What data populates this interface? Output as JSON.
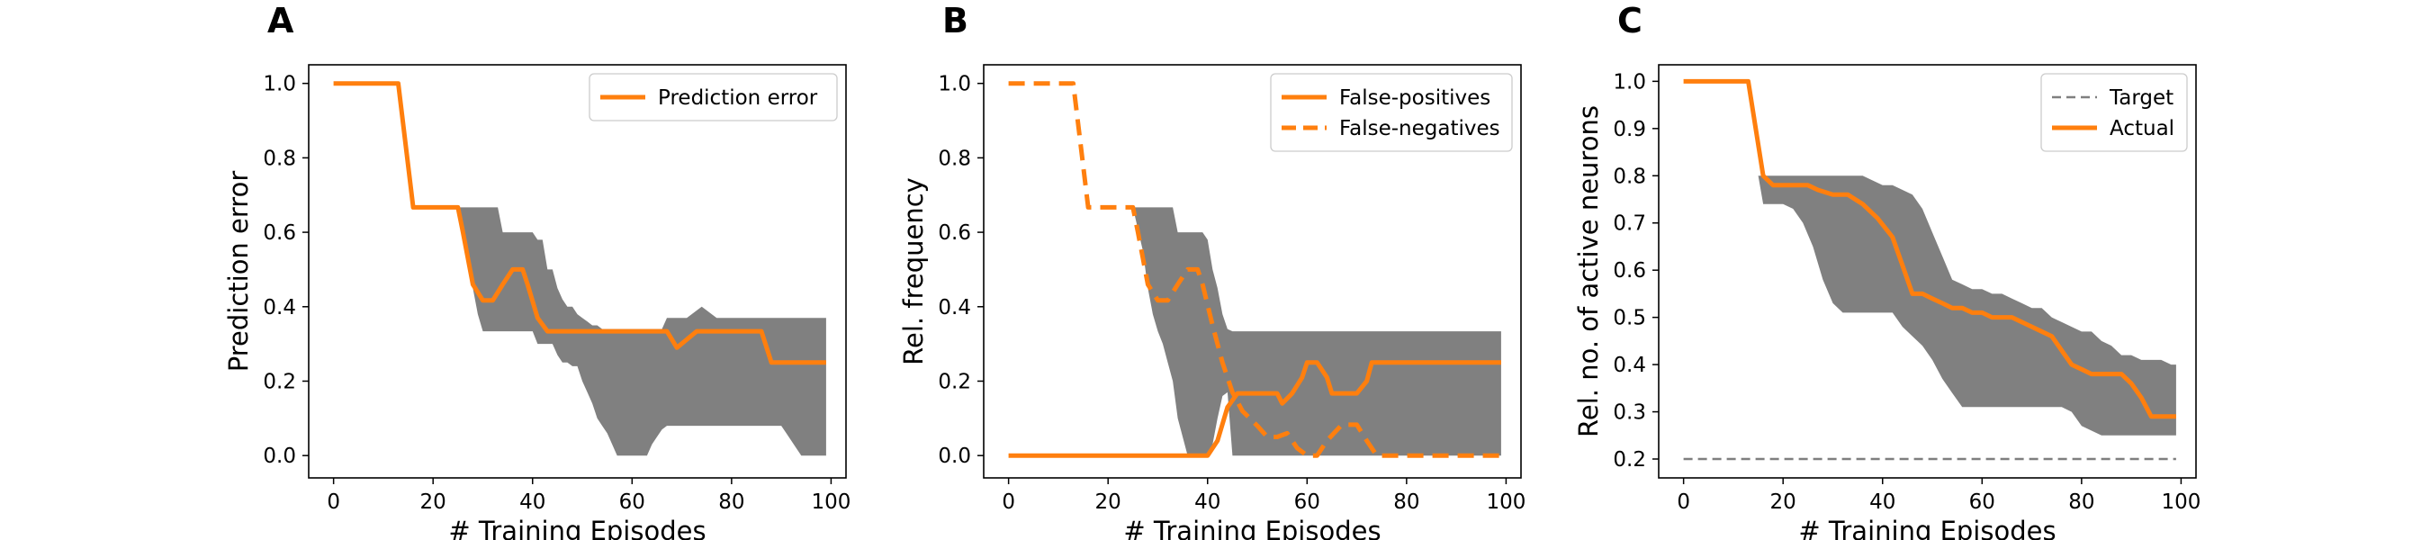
{
  "colors": {
    "accent": "#ff7f0e",
    "band": "#808080",
    "target": "#7f7f7f",
    "axis": "#000000"
  },
  "chart_data": [
    {
      "panel": "A",
      "type": "line",
      "xlabel": "# Training Episodes",
      "ylabel": "Prediction error",
      "xlim": [
        -5,
        103
      ],
      "ylim": [
        -0.06,
        1.05
      ],
      "xticks": [
        0,
        20,
        40,
        60,
        80,
        100
      ],
      "yticks": [
        0.0,
        0.2,
        0.4,
        0.6,
        0.8,
        1.0
      ],
      "ytick_labels": [
        "0.0",
        "0.2",
        "0.4",
        "0.6",
        "0.8",
        "1.0"
      ],
      "legend": {
        "position": "top-right"
      },
      "band": {
        "x": [
          25,
          27,
          28,
          29,
          30,
          31,
          32,
          33,
          34,
          35,
          36,
          37,
          38,
          39,
          40,
          41,
          42,
          43,
          44,
          45,
          46,
          47,
          48,
          49,
          50,
          51,
          52,
          53,
          54,
          55,
          56,
          57,
          58,
          59,
          60,
          61,
          62,
          63,
          64,
          65,
          66,
          67,
          68,
          69,
          70,
          71,
          72,
          73,
          74,
          75,
          76,
          77,
          78,
          79,
          80,
          81,
          82,
          83,
          84,
          85,
          86,
          87,
          88,
          89,
          90,
          91,
          92,
          93,
          94,
          95,
          96,
          97,
          98,
          99
        ],
        "upper": [
          0.667,
          0.667,
          0.667,
          0.667,
          0.667,
          0.667,
          0.667,
          0.667,
          0.6,
          0.6,
          0.6,
          0.6,
          0.6,
          0.6,
          0.6,
          0.58,
          0.58,
          0.5,
          0.5,
          0.45,
          0.42,
          0.4,
          0.4,
          0.38,
          0.37,
          0.36,
          0.35,
          0.35,
          0.34,
          0.34,
          0.34,
          0.34,
          0.34,
          0.34,
          0.34,
          0.34,
          0.34,
          0.34,
          0.34,
          0.34,
          0.34,
          0.37,
          0.37,
          0.37,
          0.37,
          0.37,
          0.38,
          0.39,
          0.4,
          0.39,
          0.38,
          0.37,
          0.37,
          0.37,
          0.37,
          0.37,
          0.37,
          0.37,
          0.37,
          0.37,
          0.37,
          0.37,
          0.37,
          0.37,
          0.37,
          0.37,
          0.37,
          0.37,
          0.37,
          0.37,
          0.37,
          0.37,
          0.37,
          0.37
        ],
        "lower": [
          0.667,
          0.55,
          0.45,
          0.38,
          0.334,
          0.334,
          0.334,
          0.334,
          0.334,
          0.334,
          0.334,
          0.334,
          0.334,
          0.334,
          0.334,
          0.3,
          0.3,
          0.3,
          0.3,
          0.27,
          0.25,
          0.25,
          0.24,
          0.24,
          0.2,
          0.17,
          0.14,
          0.1,
          0.08,
          0.06,
          0.03,
          0.0,
          0.0,
          0.0,
          0.0,
          0.0,
          0.0,
          0.0,
          0.03,
          0.05,
          0.07,
          0.08,
          0.08,
          0.08,
          0.08,
          0.08,
          0.08,
          0.08,
          0.08,
          0.08,
          0.08,
          0.08,
          0.08,
          0.08,
          0.08,
          0.08,
          0.08,
          0.08,
          0.08,
          0.08,
          0.08,
          0.08,
          0.08,
          0.08,
          0.08,
          0.06,
          0.04,
          0.02,
          0.0,
          0.0,
          0.0,
          0.0,
          0.0,
          0.0
        ]
      },
      "series": [
        {
          "name": "Prediction error",
          "style": "solid",
          "x": [
            0,
            13,
            16,
            25,
            26,
            28,
            30,
            32,
            34,
            36,
            38,
            39,
            41,
            43,
            45,
            48,
            52,
            57,
            65,
            67,
            69,
            73,
            75,
            82,
            86,
            88,
            99
          ],
          "y": [
            1.0,
            1.0,
            0.667,
            0.667,
            0.6,
            0.46,
            0.417,
            0.417,
            0.46,
            0.5,
            0.5,
            0.46,
            0.37,
            0.334,
            0.334,
            0.334,
            0.334,
            0.334,
            0.334,
            0.334,
            0.29,
            0.334,
            0.334,
            0.334,
            0.334,
            0.25,
            0.25
          ]
        }
      ]
    },
    {
      "panel": "B",
      "type": "line",
      "xlabel": "# Training Episodes",
      "ylabel": "Rel. frequency",
      "xlim": [
        -5,
        103
      ],
      "ylim": [
        -0.06,
        1.05
      ],
      "xticks": [
        0,
        20,
        40,
        60,
        80,
        100
      ],
      "yticks": [
        0.0,
        0.2,
        0.4,
        0.6,
        0.8,
        1.0
      ],
      "ytick_labels": [
        "0.0",
        "0.2",
        "0.4",
        "0.6",
        "0.8",
        "1.0"
      ],
      "legend": {
        "position": "top-right"
      },
      "band": {
        "x": [
          25,
          27,
          28,
          29,
          30,
          31,
          32,
          33,
          34,
          35,
          36,
          37,
          38,
          39,
          40,
          41,
          42,
          43,
          44,
          45,
          46,
          47,
          48,
          49,
          50,
          52,
          55,
          58,
          60,
          63,
          65,
          70,
          75,
          80,
          85,
          90,
          95,
          99
        ],
        "upper": [
          0.667,
          0.667,
          0.667,
          0.667,
          0.667,
          0.667,
          0.667,
          0.667,
          0.6,
          0.6,
          0.6,
          0.6,
          0.6,
          0.6,
          0.58,
          0.5,
          0.45,
          0.38,
          0.34,
          0.334,
          0.334,
          0.334,
          0.334,
          0.334,
          0.334,
          0.334,
          0.334,
          0.334,
          0.334,
          0.334,
          0.334,
          0.334,
          0.334,
          0.334,
          0.334,
          0.334,
          0.334,
          0.334
        ],
        "lower": [
          0.667,
          0.55,
          0.45,
          0.38,
          0.334,
          0.3,
          0.25,
          0.2,
          0.1,
          0.05,
          0.0,
          0.0,
          0.0,
          0.0,
          0.0,
          0.03,
          0.1,
          0.16,
          0.17,
          0.0,
          0.0,
          0.0,
          0.0,
          0.0,
          0.0,
          0.0,
          0.0,
          0.0,
          0.0,
          0.0,
          0.0,
          0.0,
          0.0,
          0.0,
          0.0,
          0.0,
          0.0,
          0.0
        ]
      },
      "series": [
        {
          "name": "False-positives",
          "style": "solid",
          "x": [
            0,
            40,
            42,
            44,
            46,
            50,
            54,
            55,
            57,
            59,
            60,
            62,
            64,
            65,
            66,
            70,
            72,
            73,
            75,
            99
          ],
          "y": [
            0.0,
            0.0,
            0.04,
            0.13,
            0.167,
            0.167,
            0.167,
            0.14,
            0.167,
            0.21,
            0.25,
            0.25,
            0.21,
            0.167,
            0.167,
            0.167,
            0.2,
            0.25,
            0.25,
            0.25
          ]
        },
        {
          "name": "False-negatives",
          "style": "dashed",
          "x": [
            0,
            13,
            16,
            25,
            26,
            28,
            30,
            32,
            34,
            36,
            38,
            39,
            41,
            43,
            45,
            47,
            50,
            52,
            54,
            56,
            58,
            60,
            62,
            64,
            67,
            70,
            72,
            74,
            76,
            99
          ],
          "y": [
            1.0,
            1.0,
            0.667,
            0.667,
            0.6,
            0.46,
            0.417,
            0.417,
            0.46,
            0.5,
            0.5,
            0.46,
            0.35,
            0.25,
            0.17,
            0.12,
            0.08,
            0.05,
            0.05,
            0.06,
            0.02,
            0.0,
            0.0,
            0.04,
            0.083,
            0.083,
            0.04,
            0.0,
            0.0,
            0.0
          ]
        }
      ]
    },
    {
      "panel": "C",
      "type": "line",
      "xlabel": "# Training Episodes",
      "ylabel": "Rel. no. of active neurons",
      "xlim": [
        -5,
        103
      ],
      "ylim": [
        0.16,
        1.035
      ],
      "xticks": [
        0,
        20,
        40,
        60,
        80,
        100
      ],
      "yticks": [
        0.2,
        0.3,
        0.4,
        0.5,
        0.6,
        0.7,
        0.8,
        0.9,
        1.0
      ],
      "ytick_labels": [
        "0.2",
        "0.3",
        "0.4",
        "0.5",
        "0.6",
        "0.7",
        "0.8",
        "0.9",
        "1.0"
      ],
      "legend": {
        "position": "top-right"
      },
      "band": {
        "x": [
          15,
          16,
          18,
          20,
          22,
          24,
          26,
          28,
          30,
          32,
          34,
          36,
          38,
          40,
          42,
          44,
          46,
          48,
          50,
          52,
          54,
          56,
          58,
          60,
          62,
          64,
          66,
          68,
          70,
          72,
          74,
          76,
          78,
          80,
          82,
          84,
          86,
          88,
          90,
          92,
          94,
          96,
          98,
          99
        ],
        "upper": [
          0.8,
          0.8,
          0.8,
          0.8,
          0.8,
          0.8,
          0.8,
          0.8,
          0.8,
          0.8,
          0.8,
          0.8,
          0.79,
          0.78,
          0.78,
          0.77,
          0.76,
          0.73,
          0.68,
          0.63,
          0.58,
          0.57,
          0.56,
          0.56,
          0.55,
          0.55,
          0.54,
          0.53,
          0.52,
          0.52,
          0.5,
          0.49,
          0.48,
          0.47,
          0.47,
          0.45,
          0.44,
          0.42,
          0.42,
          0.41,
          0.41,
          0.41,
          0.4,
          0.4
        ],
        "lower": [
          0.8,
          0.74,
          0.74,
          0.74,
          0.73,
          0.7,
          0.65,
          0.58,
          0.53,
          0.51,
          0.51,
          0.51,
          0.51,
          0.51,
          0.51,
          0.48,
          0.46,
          0.44,
          0.41,
          0.37,
          0.34,
          0.31,
          0.31,
          0.31,
          0.31,
          0.31,
          0.31,
          0.31,
          0.31,
          0.31,
          0.31,
          0.31,
          0.3,
          0.27,
          0.26,
          0.25,
          0.25,
          0.25,
          0.25,
          0.25,
          0.25,
          0.25,
          0.25,
          0.25
        ]
      },
      "series": [
        {
          "name": "Target",
          "style": "dashed-thin",
          "x": [
            0,
            99
          ],
          "y": [
            0.2,
            0.2
          ]
        },
        {
          "name": "Actual",
          "style": "solid",
          "x": [
            0,
            13,
            16,
            18,
            20,
            22,
            25,
            27,
            30,
            33,
            36,
            39,
            42,
            44,
            46,
            48,
            50,
            52,
            54,
            56,
            58,
            60,
            62,
            64,
            66,
            68,
            70,
            72,
            74,
            76,
            78,
            80,
            82,
            84,
            86,
            88,
            90,
            92,
            94,
            96,
            98,
            99
          ],
          "y": [
            1.0,
            1.0,
            0.8,
            0.78,
            0.78,
            0.78,
            0.78,
            0.77,
            0.76,
            0.76,
            0.74,
            0.71,
            0.67,
            0.61,
            0.55,
            0.55,
            0.54,
            0.53,
            0.52,
            0.52,
            0.51,
            0.51,
            0.5,
            0.5,
            0.5,
            0.49,
            0.48,
            0.47,
            0.46,
            0.43,
            0.4,
            0.39,
            0.38,
            0.38,
            0.38,
            0.38,
            0.36,
            0.33,
            0.29,
            0.29,
            0.29,
            0.29
          ]
        }
      ]
    }
  ]
}
